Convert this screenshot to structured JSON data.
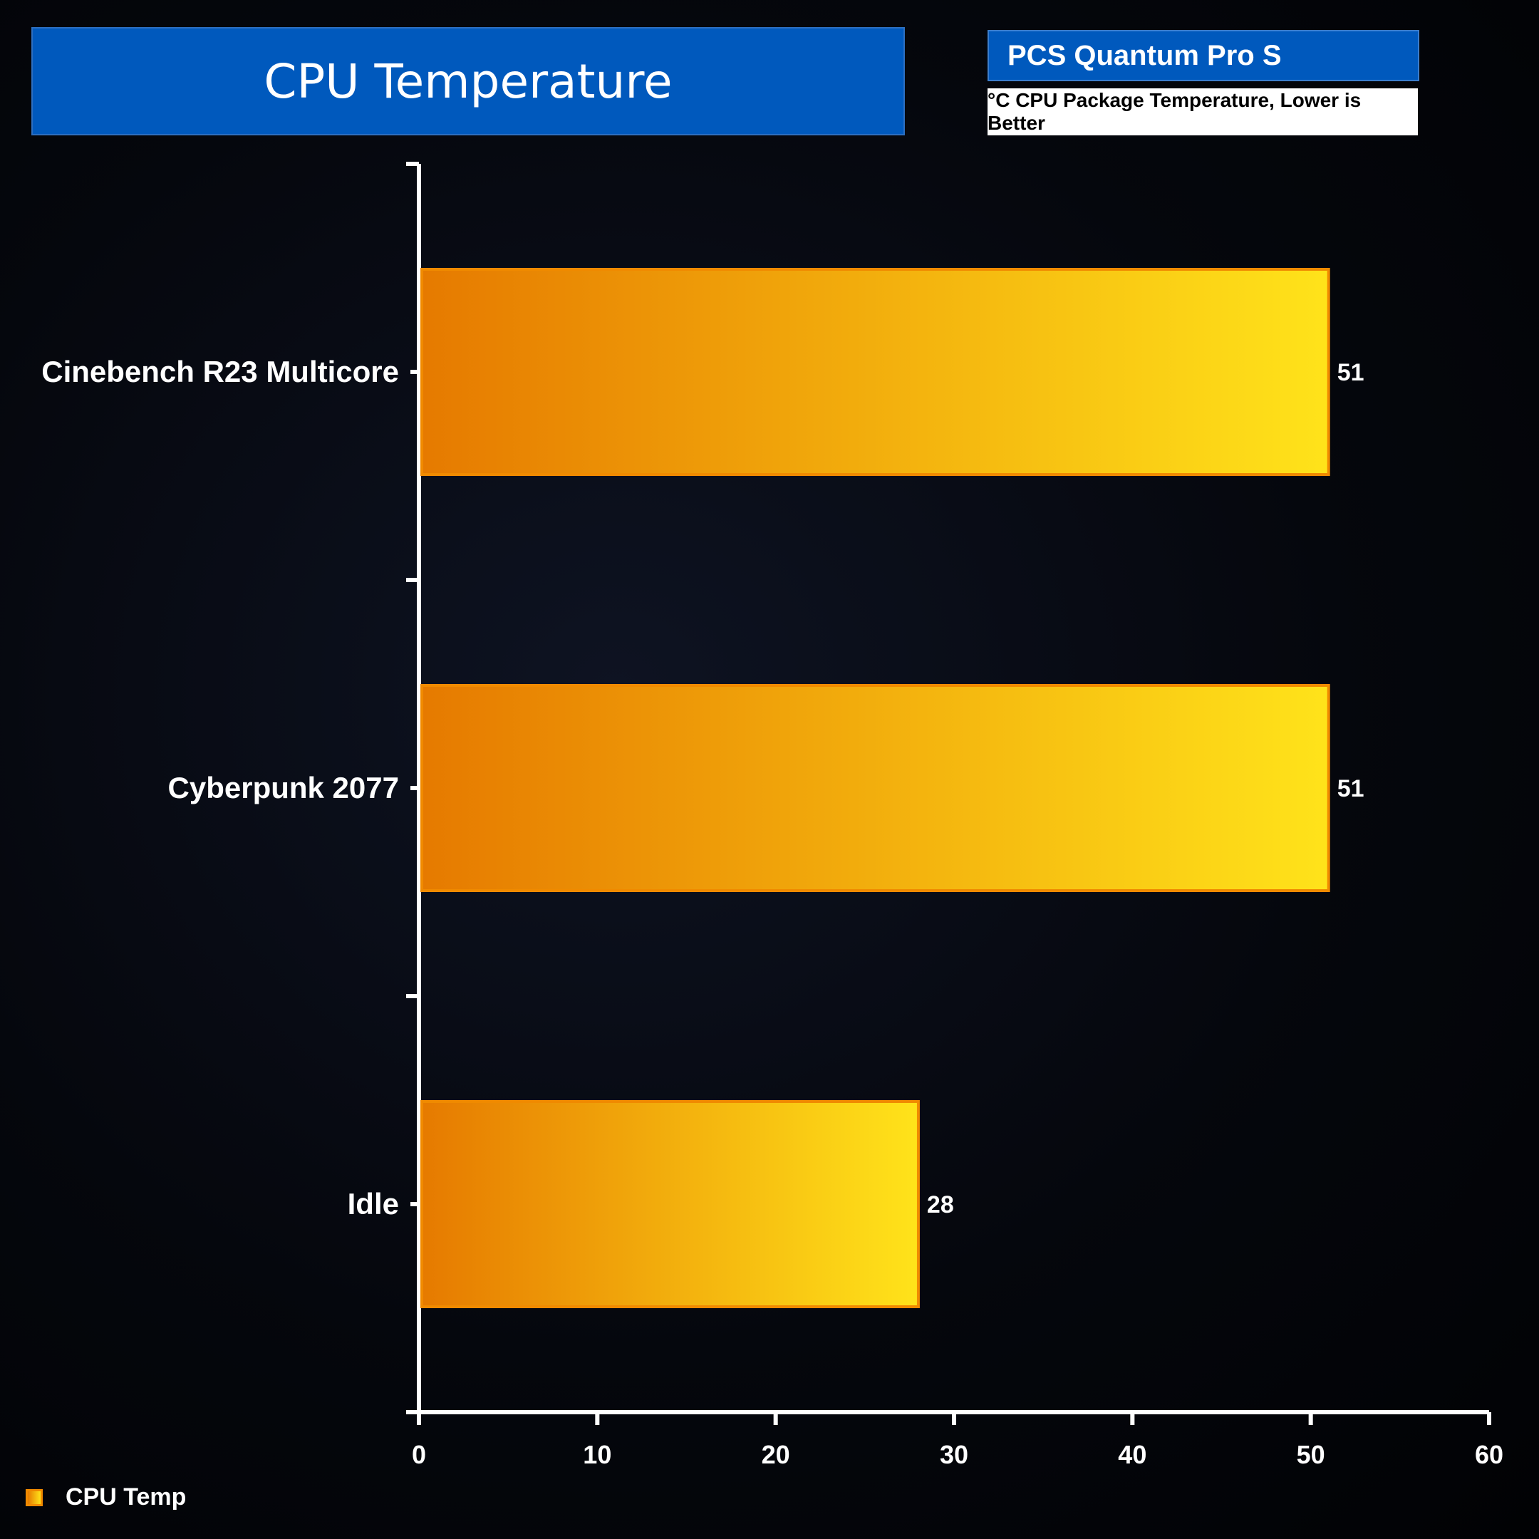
{
  "chart_data": {
    "type": "bar",
    "orientation": "horizontal",
    "title": "CPU Temperature",
    "subtitle": "PCS Quantum Pro S",
    "units_note": "°C CPU Package Temperature, Lower is Better",
    "categories": [
      "Cinebench R23 Multicore",
      "Cyberpunk 2077",
      "Idle"
    ],
    "series": [
      {
        "name": "CPU Temp",
        "values": [
          51,
          51,
          28
        ]
      }
    ],
    "xlim": [
      0,
      60
    ],
    "xticks": [
      0,
      10,
      20,
      30,
      40,
      50,
      60
    ],
    "grid": false,
    "legend_position": "bottom-left",
    "data_labels": true
  },
  "colors": {
    "title_bg": "#0059bd",
    "bar_start": "#e67a00",
    "bar_end": "#ffe31a",
    "bar_border": "#f08a00",
    "axis": "#ffffff"
  }
}
